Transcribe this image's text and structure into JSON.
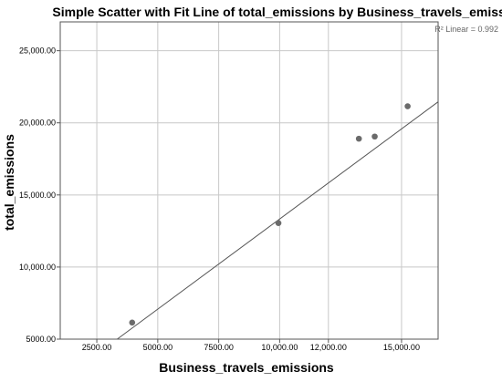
{
  "chart_data": {
    "type": "scatter",
    "title": "Simple Scatter with Fit Line of total_emissions by Business_travels_emissions",
    "xlabel": "Business_travels_emissions",
    "ylabel": "total_emissions",
    "xlim": [
      1000,
      16500
    ],
    "ylim": [
      5000,
      27000
    ],
    "x_ticks": [
      2500,
      5000,
      7500,
      10000,
      12000,
      15000
    ],
    "x_tick_labels": [
      "2500.00",
      "5000.00",
      "7500.00",
      "10,000.00",
      "12,000.00",
      "15,000.00"
    ],
    "y_ticks": [
      5000,
      10000,
      15000,
      20000,
      25000
    ],
    "y_tick_labels": [
      "5000.00",
      "10,000.00",
      "15,000.00",
      "20,000.00",
      "25,000.00"
    ],
    "points": [
      {
        "x": 3950,
        "y": 6150
      },
      {
        "x": 9950,
        "y": 13050
      },
      {
        "x": 13250,
        "y": 18900
      },
      {
        "x": 13900,
        "y": 19050
      },
      {
        "x": 15250,
        "y": 21150
      }
    ],
    "fit_line": {
      "slope": 1.25,
      "intercept": 830
    },
    "annotation": "R² Linear = 0.992",
    "grid": true
  }
}
